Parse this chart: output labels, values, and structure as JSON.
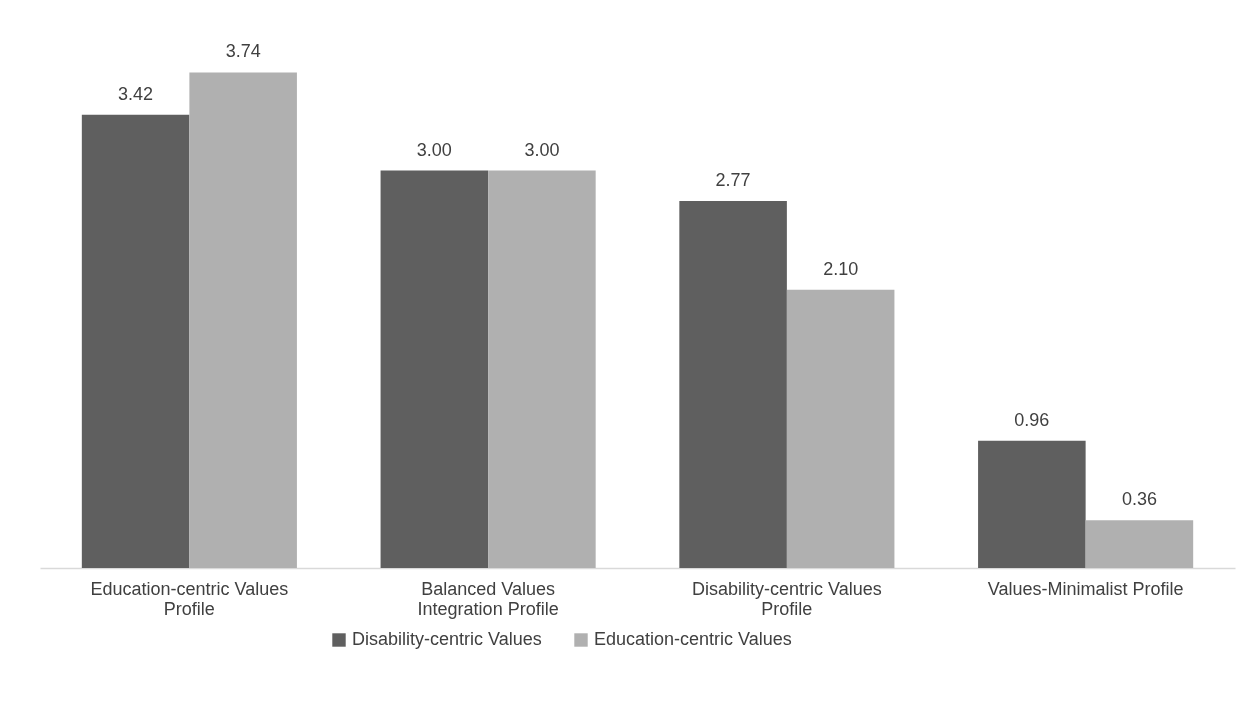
{
  "chart_data": {
    "type": "bar",
    "categories": [
      "Education-centric Values Profile",
      "Balanced Values Integration Profile",
      "Disability-centric Values Profile",
      "Values-Minimalist Profile"
    ],
    "series": [
      {
        "name": "Disability-centric Values",
        "color": "#5f5f5f",
        "values": [
          3.42,
          3.0,
          2.77,
          0.96
        ],
        "value_labels": [
          "3.42",
          "3.00",
          "2.77",
          "0.96"
        ]
      },
      {
        "name": "Education-centric Values",
        "color": "#b0b0b0",
        "values": [
          3.74,
          3.0,
          2.1,
          0.36
        ],
        "value_labels": [
          "3.74",
          "3.00",
          "2.10",
          "0.36"
        ]
      }
    ],
    "grid": false,
    "legend": "bottom",
    "tick_labels": "x"
  }
}
